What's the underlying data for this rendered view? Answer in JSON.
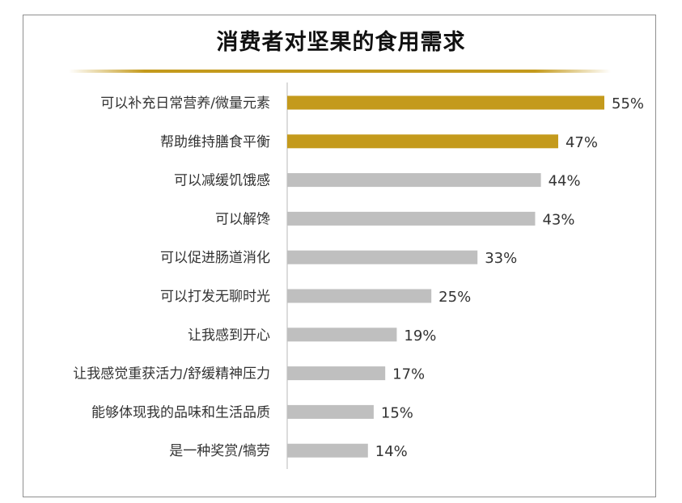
{
  "chart_data": {
    "type": "bar",
    "orientation": "horizontal",
    "title": "消费者对坚果的食用需求",
    "categories": [
      "可以补充日常营养/微量元素",
      "帮助维持膳食平衡",
      "可以减缓饥饿感",
      "可以解馋",
      "可以促进肠道消化",
      "可以打发无聊时光",
      "让我感到开心",
      "让我感觉重获活力/舒缓精神压力",
      "能够体现我的品味和生活品质",
      "是一种奖赏/犒劳"
    ],
    "values": [
      55,
      47,
      44,
      43,
      33,
      25,
      19,
      17,
      15,
      14
    ],
    "labels": [
      "55%",
      "47%",
      "44%",
      "43%",
      "33%",
      "25%",
      "19%",
      "17%",
      "15%",
      "14%"
    ],
    "value_unit": "%",
    "xlim": [
      0,
      55
    ],
    "highlight_count": 2,
    "colors": {
      "highlight": "#c49a1c",
      "default": "#bfbfbf",
      "axis": "#d0d0d0"
    },
    "grid": false,
    "legend": "none"
  }
}
